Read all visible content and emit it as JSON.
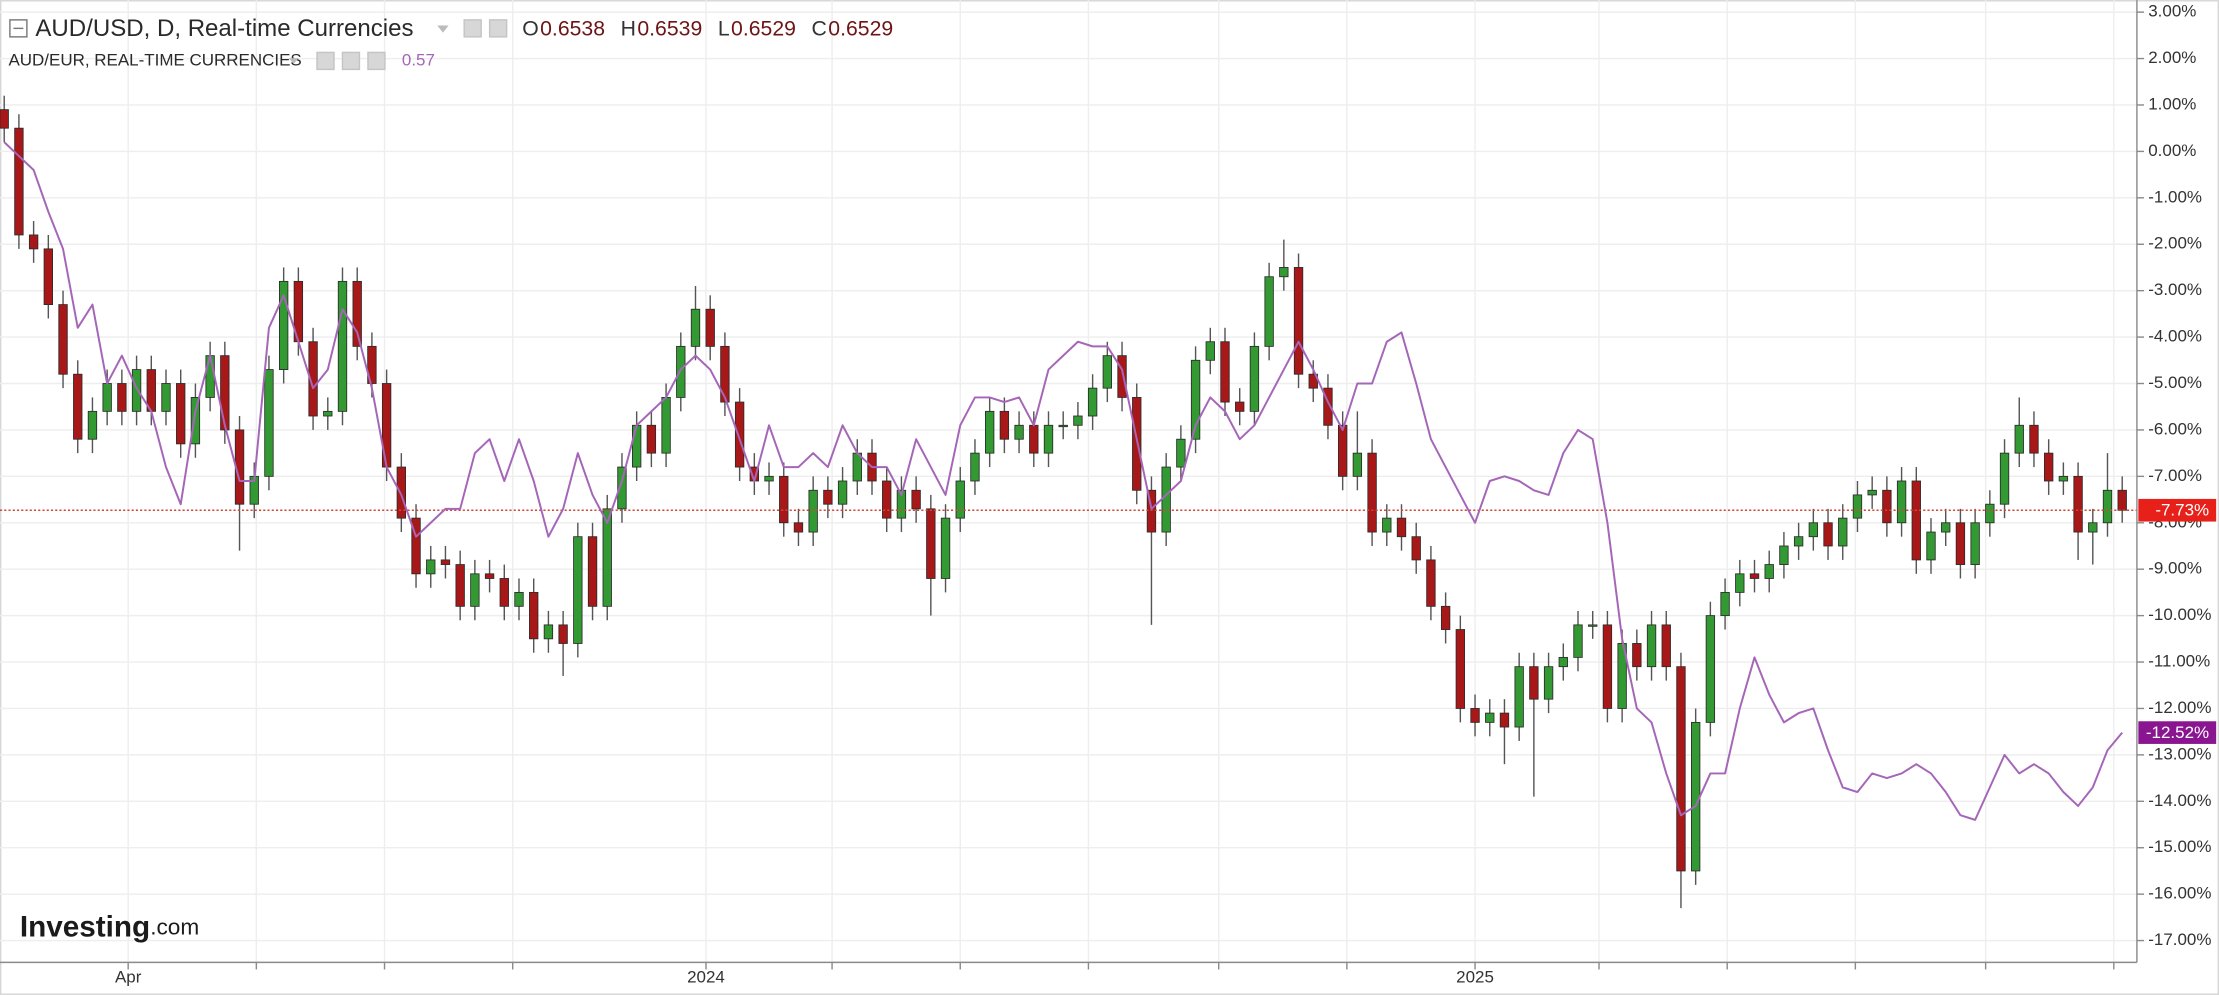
{
  "chart_data": {
    "type": "candlestick",
    "x": [
      -28,
      -21,
      -14,
      -7,
      0,
      7,
      14,
      21,
      28,
      35,
      42,
      49,
      56,
      63,
      70,
      77,
      84,
      91,
      98,
      105,
      112,
      119,
      126,
      133,
      140,
      147,
      154,
      161,
      168,
      175,
      182,
      189,
      196,
      203,
      210,
      217,
      224,
      231,
      238,
      245,
      252,
      259,
      266,
      273,
      280,
      287,
      294,
      301,
      308,
      315,
      322,
      329,
      336,
      343,
      350,
      357,
      364,
      371,
      378,
      385,
      392,
      399,
      406,
      413,
      420,
      427,
      434,
      441,
      448,
      455,
      462,
      469,
      476,
      483,
      490,
      497,
      504,
      511,
      518,
      525,
      532,
      539,
      546,
      553,
      560,
      567,
      574,
      581,
      588,
      595,
      602,
      609,
      616,
      623,
      630,
      637,
      644,
      651,
      658,
      665,
      672,
      679,
      686,
      693,
      700,
      707,
      714,
      721,
      728,
      735,
      742,
      749,
      756,
      763,
      770,
      777,
      784,
      791,
      798,
      805,
      812,
      819,
      826,
      833,
      840,
      847,
      854,
      861,
      868,
      875,
      882,
      889,
      896,
      903,
      910,
      917,
      924,
      931,
      938,
      945,
      952,
      959,
      966,
      973,
      980
    ],
    "xlim": [
      -30,
      987
    ],
    "xticks": [
      {
        "value": 31,
        "label": "Apr"
      },
      {
        "value": 306,
        "label": "2024"
      },
      {
        "value": 672,
        "label": "2025"
      }
    ],
    "xminor_ticks": [
      92,
      153,
      214,
      366,
      427,
      488,
      550,
      611,
      731,
      792,
      853,
      915,
      976
    ],
    "ylim": [
      -17.47,
      3.26
    ],
    "yticks": [
      {
        "value": 3,
        "label": "3.00%"
      },
      {
        "value": 2,
        "label": "2.00%"
      },
      {
        "value": 1,
        "label": "1.00%"
      },
      {
        "value": 0,
        "label": "0.00%"
      },
      {
        "value": -1,
        "label": "-1.00%"
      },
      {
        "value": -2,
        "label": "-2.00%"
      },
      {
        "value": -3,
        "label": "-3.00%"
      },
      {
        "value": -4,
        "label": "-4.00%"
      },
      {
        "value": -5,
        "label": "-5.00%"
      },
      {
        "value": -6,
        "label": "-6.00%"
      },
      {
        "value": -7,
        "label": "-7.00%"
      },
      {
        "value": -8,
        "label": "-8.00%"
      },
      {
        "value": -9,
        "label": "-9.00%"
      },
      {
        "value": -10,
        "label": "-10.00%"
      },
      {
        "value": -11,
        "label": "-11.00%"
      },
      {
        "value": -12,
        "label": "-12.00%"
      },
      {
        "value": -13,
        "label": "-13.00%"
      },
      {
        "value": -14,
        "label": "-14.00%"
      },
      {
        "value": -15,
        "label": "-15.00%"
      },
      {
        "value": -16,
        "label": "-16.00%"
      },
      {
        "value": -17,
        "label": "-17.00%"
      }
    ],
    "grid": true,
    "series": [
      {
        "name": "AUD/USD, D, Real-time Currencies",
        "type": "candlestick",
        "up_color": "#339933",
        "down_color": "#a81818",
        "last_line_color": "#d0483a",
        "readout": [
          {
            "label": "O",
            "value": 0.6538
          },
          {
            "label": "H",
            "value": 0.6539
          },
          {
            "label": "L",
            "value": 0.6529
          },
          {
            "label": "C",
            "value": 0.6529
          }
        ],
        "price_label": "-7.73%",
        "price_label_color": "#e8201a",
        "open": [
          0.9,
          0.5,
          -1.8,
          -2.1,
          -3.3,
          -4.8,
          -6.2,
          -5.6,
          -5.0,
          -5.6,
          -4.7,
          -5.6,
          -5.0,
          -6.3,
          -5.3,
          -4.4,
          -6.0,
          -7.6,
          -7.0,
          -4.7,
          -2.8,
          -4.1,
          -5.7,
          -5.6,
          -2.8,
          -4.2,
          -5.0,
          -6.8,
          -7.9,
          -9.1,
          -8.8,
          -8.9,
          -9.8,
          -9.1,
          -9.2,
          -9.8,
          -9.5,
          -10.5,
          -10.2,
          -10.6,
          -8.3,
          -9.8,
          -7.7,
          -6.8,
          -5.9,
          -6.5,
          -5.3,
          -4.2,
          -3.4,
          -4.2,
          -5.4,
          -6.8,
          -7.1,
          -7.0,
          -8.0,
          -8.2,
          -7.3,
          -7.6,
          -7.1,
          -6.5,
          -7.1,
          -7.9,
          -7.3,
          -7.7,
          -9.2,
          -7.9,
          -7.1,
          -6.5,
          -5.6,
          -6.2,
          -5.9,
          -6.5,
          -5.9,
          -5.9,
          -5.7,
          -5.1,
          -4.4,
          -5.3,
          -7.3,
          -8.2,
          -6.8,
          -6.2,
          -4.5,
          -4.1,
          -5.4,
          -5.6,
          -4.2,
          -2.7,
          -2.5,
          -4.8,
          -5.1,
          -5.9,
          -7.0,
          -6.5,
          -8.2,
          -7.9,
          -8.3,
          -8.8,
          -9.8,
          -10.3,
          -12.0,
          -12.3,
          -12.1,
          -12.4,
          -11.1,
          -11.8,
          -11.1,
          -10.9,
          -10.2,
          -10.2,
          -12.0,
          -10.6,
          -11.1,
          -10.2,
          -11.1,
          -15.5,
          -12.3,
          -10.0,
          -9.5,
          -9.1,
          -9.2,
          -8.9,
          -8.5,
          -8.3,
          -8.0,
          -8.5,
          -7.9,
          -7.4,
          -7.3,
          -8.0,
          -7.1,
          -8.8,
          -8.2,
          -8.0,
          -8.9,
          -8.0,
          -7.6,
          -6.5,
          -5.9,
          -6.5,
          -7.1,
          -7.0,
          -8.2,
          -8.0,
          -7.3
        ],
        "high": [
          1.2,
          0.8,
          -1.5,
          -1.8,
          -3.0,
          -4.5,
          -5.3,
          -4.7,
          -4.7,
          -4.4,
          -4.4,
          -4.7,
          -4.7,
          -5.0,
          -4.1,
          -4.1,
          -5.7,
          -6.7,
          -4.4,
          -2.5,
          -2.5,
          -3.8,
          -5.3,
          -2.5,
          -2.5,
          -3.9,
          -4.7,
          -6.5,
          -7.6,
          -8.5,
          -8.5,
          -8.6,
          -8.8,
          -8.8,
          -8.9,
          -9.2,
          -9.2,
          -9.9,
          -9.9,
          -8.0,
          -8.0,
          -7.4,
          -6.5,
          -5.6,
          -5.6,
          -5.0,
          -3.9,
          -2.9,
          -3.1,
          -3.9,
          -5.1,
          -6.5,
          -6.7,
          -6.7,
          -7.7,
          -7.0,
          -7.0,
          -6.8,
          -6.2,
          -6.2,
          -6.8,
          -7.0,
          -7.0,
          -7.4,
          -7.6,
          -6.8,
          -6.2,
          -5.3,
          -5.3,
          -5.6,
          -5.6,
          -5.6,
          -5.6,
          -5.4,
          -4.8,
          -4.1,
          -4.1,
          -5.0,
          -7.0,
          -6.5,
          -5.9,
          -4.2,
          -3.8,
          -3.8,
          -5.1,
          -3.9,
          -2.4,
          -1.9,
          -2.2,
          -4.5,
          -4.8,
          -5.6,
          -5.6,
          -6.2,
          -7.6,
          -7.6,
          -8.0,
          -8.5,
          -9.5,
          -10.0,
          -11.7,
          -11.8,
          -11.8,
          -10.8,
          -10.8,
          -10.8,
          -10.6,
          -9.9,
          -9.9,
          -9.9,
          -10.3,
          -10.3,
          -9.9,
          -9.9,
          -10.8,
          -12.0,
          -9.7,
          -9.2,
          -8.8,
          -8.8,
          -8.6,
          -8.2,
          -8.0,
          -7.7,
          -7.7,
          -7.6,
          -7.1,
          -7.0,
          -7.0,
          -6.8,
          -6.8,
          -7.9,
          -7.7,
          -7.7,
          -7.7,
          -7.3,
          -6.2,
          -5.3,
          -5.6,
          -6.2,
          -6.7,
          -6.7,
          -7.7,
          -6.5,
          -7.0
        ],
        "low": [
          0.2,
          -2.1,
          -2.4,
          -3.6,
          -5.1,
          -6.5,
          -6.5,
          -5.9,
          -5.9,
          -5.9,
          -5.9,
          -5.9,
          -6.6,
          -6.6,
          -5.6,
          -6.3,
          -8.6,
          -7.9,
          -7.3,
          -5.0,
          -4.4,
          -6.0,
          -6.0,
          -5.9,
          -4.5,
          -5.3,
          -7.1,
          -8.2,
          -9.4,
          -9.4,
          -9.2,
          -10.1,
          -10.1,
          -9.5,
          -10.1,
          -10.1,
          -10.8,
          -10.8,
          -11.3,
          -10.9,
          -10.1,
          -10.1,
          -8.0,
          -7.1,
          -6.8,
          -6.8,
          -5.6,
          -4.5,
          -4.5,
          -5.7,
          -7.1,
          -7.4,
          -7.4,
          -8.3,
          -8.5,
          -8.5,
          -7.9,
          -7.9,
          -7.4,
          -7.4,
          -8.2,
          -8.2,
          -8.0,
          -10.0,
          -9.5,
          -8.2,
          -7.4,
          -6.8,
          -6.5,
          -6.5,
          -6.8,
          -6.8,
          -6.2,
          -6.2,
          -6.0,
          -5.4,
          -5.6,
          -7.6,
          -10.2,
          -8.5,
          -7.1,
          -6.5,
          -4.8,
          -5.7,
          -5.9,
          -5.9,
          -4.5,
          -3.0,
          -5.1,
          -5.4,
          -6.2,
          -7.3,
          -7.3,
          -8.5,
          -8.5,
          -8.6,
          -9.1,
          -10.1,
          -10.6,
          -12.3,
          -12.6,
          -12.6,
          -13.2,
          -12.7,
          -13.9,
          -12.1,
          -11.4,
          -11.2,
          -10.5,
          -12.3,
          -12.3,
          -11.4,
          -11.4,
          -11.4,
          -16.3,
          -15.8,
          -12.6,
          -10.3,
          -9.8,
          -9.5,
          -9.5,
          -9.2,
          -8.8,
          -8.6,
          -8.8,
          -8.8,
          -8.2,
          -7.7,
          -8.3,
          -8.3,
          -9.1,
          -9.1,
          -8.5,
          -9.2,
          -9.2,
          -8.3,
          -7.9,
          -6.8,
          -6.8,
          -7.4,
          -7.4,
          -8.8,
          -8.9,
          -8.3,
          -8.0
        ],
        "close": [
          0.5,
          -1.8,
          -2.1,
          -3.3,
          -4.8,
          -6.2,
          -5.6,
          -5.0,
          -5.6,
          -4.7,
          -5.6,
          -5.0,
          -6.3,
          -5.3,
          -4.4,
          -6.0,
          -7.6,
          -7.0,
          -4.7,
          -2.8,
          -4.1,
          -5.7,
          -5.6,
          -2.8,
          -4.2,
          -5.0,
          -6.8,
          -7.9,
          -9.1,
          -8.8,
          -8.9,
          -9.8,
          -9.1,
          -9.2,
          -9.8,
          -9.5,
          -10.5,
          -10.2,
          -10.6,
          -8.3,
          -9.8,
          -7.7,
          -6.8,
          -5.9,
          -6.5,
          -5.3,
          -4.2,
          -3.4,
          -4.2,
          -5.4,
          -6.8,
          -7.1,
          -7.0,
          -8.0,
          -8.2,
          -7.3,
          -7.6,
          -7.1,
          -6.5,
          -7.1,
          -7.9,
          -7.3,
          -7.7,
          -9.2,
          -7.9,
          -7.1,
          -6.5,
          -5.6,
          -6.2,
          -5.9,
          -6.5,
          -5.9,
          -5.9,
          -5.7,
          -5.1,
          -4.4,
          -5.3,
          -7.3,
          -8.2,
          -6.8,
          -6.2,
          -4.5,
          -4.1,
          -5.4,
          -5.6,
          -4.2,
          -2.7,
          -2.5,
          -4.8,
          -5.1,
          -5.9,
          -7.0,
          -6.5,
          -8.2,
          -7.9,
          -8.3,
          -8.8,
          -9.8,
          -10.3,
          -12.0,
          -12.3,
          -12.1,
          -12.4,
          -11.1,
          -11.8,
          -11.1,
          -10.9,
          -10.2,
          -10.2,
          -12.0,
          -10.6,
          -11.1,
          -10.2,
          -11.1,
          -15.5,
          -12.3,
          -10.0,
          -9.5,
          -9.1,
          -9.2,
          -8.9,
          -8.5,
          -8.3,
          -8.0,
          -8.5,
          -7.9,
          -7.4,
          -7.3,
          -8.0,
          -7.1,
          -8.8,
          -8.2,
          -8.0,
          -8.9,
          -8.0,
          -7.6,
          -6.5,
          -5.9,
          -6.5,
          -7.1,
          -7.0,
          -8.2,
          -8.0,
          -7.3,
          -7.73
        ]
      },
      {
        "name": "AUD/EUR, REAL-TIME CURRENCIES",
        "type": "line",
        "color": "#a566b8",
        "readout": 0.57,
        "price_label": "-12.52%",
        "price_label_color": "#8a1590",
        "values": [
          0.2,
          -0.1,
          -0.4,
          -1.3,
          -2.1,
          -3.8,
          -3.3,
          -5.0,
          -4.4,
          -5.1,
          -5.6,
          -6.8,
          -7.6,
          -5.6,
          -4.4,
          -5.9,
          -7.1,
          -7.1,
          -3.8,
          -3.1,
          -4.1,
          -5.1,
          -4.7,
          -3.4,
          -3.9,
          -5.1,
          -6.8,
          -7.4,
          -8.3,
          -8.0,
          -7.7,
          -7.7,
          -6.5,
          -6.2,
          -7.1,
          -6.2,
          -7.1,
          -8.3,
          -7.7,
          -6.5,
          -7.4,
          -8.0,
          -7.1,
          -5.9,
          -5.6,
          -5.3,
          -4.7,
          -4.4,
          -4.7,
          -5.3,
          -6.2,
          -7.1,
          -5.9,
          -6.8,
          -6.8,
          -6.5,
          -6.8,
          -5.9,
          -6.5,
          -6.8,
          -6.8,
          -7.4,
          -6.2,
          -6.8,
          -7.4,
          -5.9,
          -5.3,
          -5.3,
          -5.4,
          -5.3,
          -5.9,
          -4.7,
          -4.4,
          -4.1,
          -4.2,
          -4.2,
          -4.7,
          -6.2,
          -7.7,
          -7.4,
          -7.1,
          -5.9,
          -5.3,
          -5.6,
          -6.2,
          -5.9,
          -5.3,
          -4.7,
          -4.1,
          -4.7,
          -5.4,
          -6.0,
          -5.0,
          -5.0,
          -4.1,
          -3.9,
          -5.0,
          -6.2,
          -6.8,
          -7.4,
          -8.0,
          -7.1,
          -7.0,
          -7.1,
          -7.3,
          -7.4,
          -6.5,
          -6.0,
          -6.2,
          -8.0,
          -10.5,
          -12.0,
          -12.3,
          -13.4,
          -14.3,
          -14.1,
          -13.4,
          -13.4,
          -12.0,
          -10.9,
          -11.7,
          -12.3,
          -12.1,
          -12.0,
          -12.9,
          -13.7,
          -13.8,
          -13.4,
          -13.5,
          -13.4,
          -13.2,
          -13.4,
          -13.8,
          -14.3,
          -14.4,
          -13.7,
          -13.0,
          -13.4,
          -13.2,
          -13.4,
          -13.8,
          -14.1,
          -13.7,
          -12.9,
          -12.52
        ]
      }
    ]
  },
  "branding": {
    "logo": "Investing",
    "suffix": ".com"
  }
}
